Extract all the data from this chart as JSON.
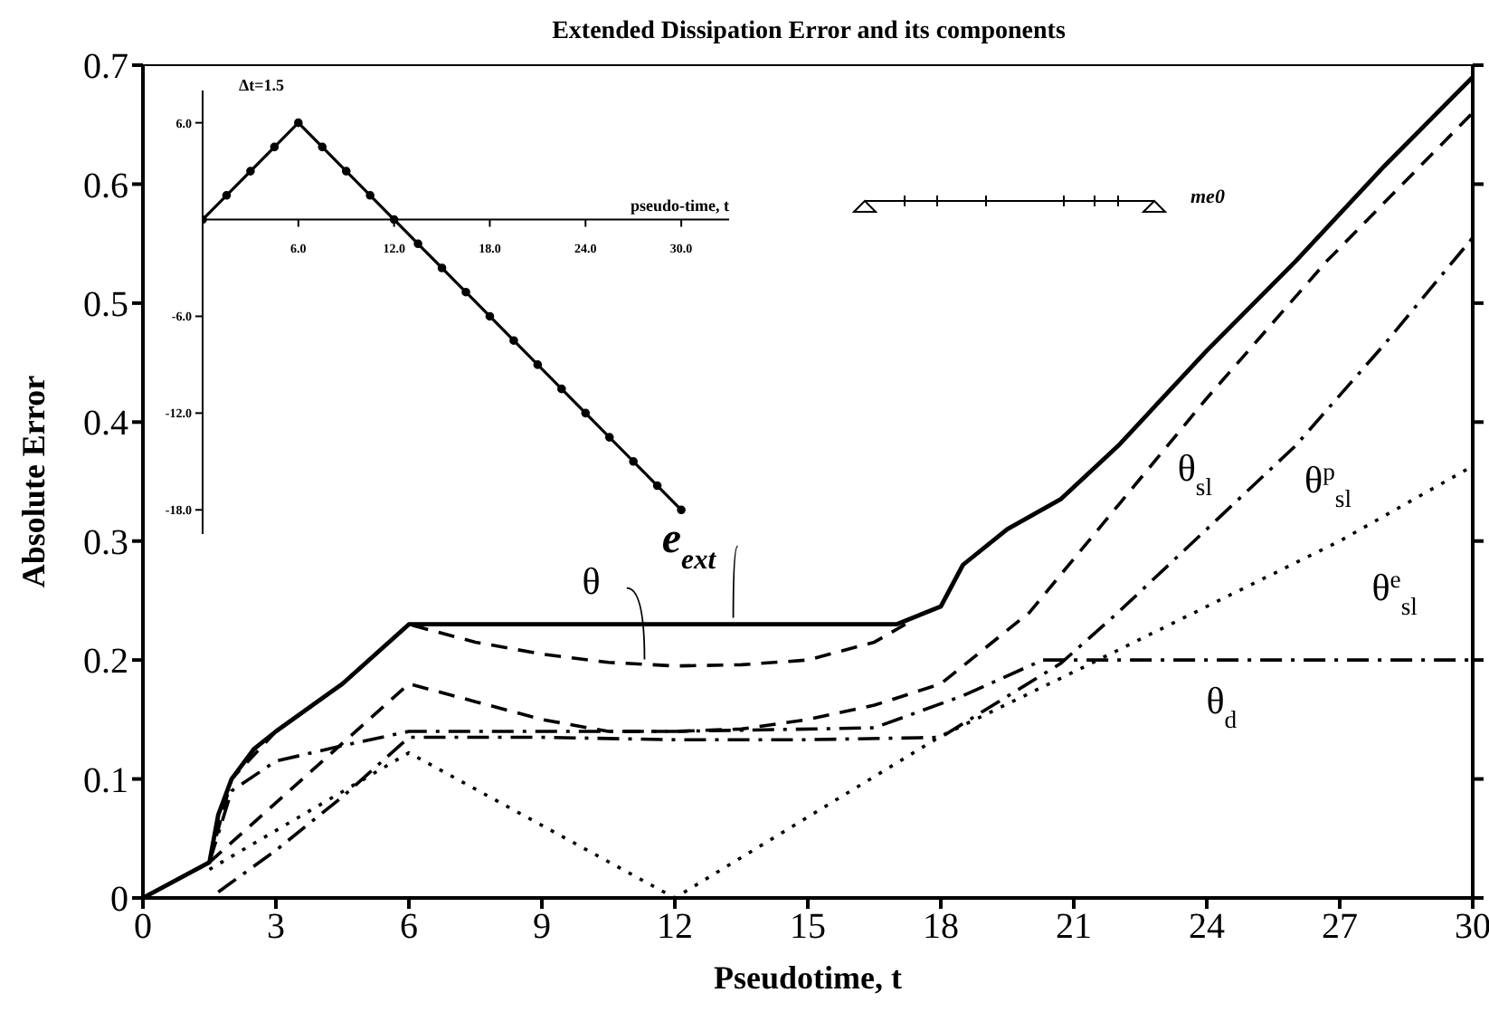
{
  "chart_data": [
    {
      "type": "line",
      "title": "Extended Dissipation Error and its components",
      "xlabel": "Pseudotime, t",
      "ylabel": "Absolute Error",
      "xlim": [
        0,
        30
      ],
      "xticks": [
        0,
        3,
        6,
        9,
        12,
        15,
        18,
        21,
        24,
        27,
        30
      ],
      "ylim": [
        0,
        0.7
      ],
      "yticks": [
        0,
        0.1,
        0.2,
        0.3,
        0.4,
        0.5,
        0.6,
        0.7
      ],
      "grid": false,
      "legend": false,
      "marker": "none",
      "series": [
        {
          "name": "e$_{ext}$",
          "color": "#000000",
          "line_style": "solid",
          "x": [
            0,
            1.5,
            1.7,
            2,
            2.5,
            3,
            4.5,
            6,
            17,
            18,
            18.5,
            19.5,
            20.7,
            22,
            24,
            26,
            28,
            30
          ],
          "values": [
            0,
            0.03,
            0.07,
            0.1,
            0.125,
            0.14,
            0.18,
            0.23,
            0.23,
            0.245,
            0.28,
            0.31,
            0.335,
            0.38,
            0.46,
            0.535,
            0.615,
            0.69
          ]
        },
        {
          "name": "θ",
          "color": "#000000",
          "line_style": "dashed",
          "x": [
            1.5,
            2,
            3,
            4.5,
            6,
            7.5,
            9,
            10.5,
            12,
            13.5,
            15,
            16.5,
            17.2
          ],
          "values": [
            0.03,
            0.1,
            0.14,
            0.18,
            0.23,
            0.215,
            0.205,
            0.198,
            0.195,
            0.196,
            0.2,
            0.215,
            0.23
          ]
        },
        {
          "name": "θ$_{sl}$",
          "color": "#000000",
          "line_style": "dashed",
          "x": [
            1.5,
            3,
            4.5,
            6,
            7.5,
            9,
            10.5,
            12,
            13.5,
            15,
            16.5,
            18,
            20,
            22,
            24,
            26.7,
            30
          ],
          "values": [
            0.03,
            0.08,
            0.13,
            0.18,
            0.165,
            0.15,
            0.14,
            0.14,
            0.142,
            0.15,
            0.162,
            0.18,
            0.24,
            0.33,
            0.42,
            0.535,
            0.66
          ]
        },
        {
          "name": "θ$^{p}$$_{sl}$",
          "color": "#000000",
          "line_style": "dashdot",
          "x": [
            1.7,
            3,
            4.5,
            6,
            9,
            12,
            15,
            18,
            20.7,
            22,
            24,
            26,
            28,
            30
          ],
          "values": [
            0.005,
            0.04,
            0.085,
            0.135,
            0.135,
            0.133,
            0.133,
            0.135,
            0.197,
            0.24,
            0.31,
            0.38,
            0.465,
            0.555
          ]
        },
        {
          "name": "θ$^{e}$$_{sl}$",
          "color": "#000000",
          "line_style": "dotted",
          "x": [
            1.5,
            6,
            12,
            18,
            21,
            24,
            27,
            30
          ],
          "values": [
            0.024,
            0.122,
            0,
            0.136,
            0.19,
            0.245,
            0.3,
            0.363
          ]
        },
        {
          "name": "θ$_{d}$",
          "color": "#000000",
          "line_style": "dashdot",
          "x": [
            1.5,
            2,
            3,
            4.5,
            6,
            12,
            16.5,
            18.5,
            20.3,
            30
          ],
          "values": [
            0.03,
            0.09,
            0.115,
            0.128,
            0.14,
            0.14,
            0.143,
            0.17,
            0.2,
            0.2
          ]
        }
      ]
    },
    {
      "type": "line",
      "title": "Δt=1.5",
      "xlabel": "pseudo-time, t",
      "annotations": [
        "me0"
      ],
      "xlim": [
        0,
        33
      ],
      "xticks": [
        {
          "value": 6,
          "label": "6.0"
        },
        {
          "value": 12,
          "label": "12.0"
        },
        {
          "value": 18,
          "label": "18.0"
        },
        {
          "value": 24,
          "label": "24.0"
        },
        {
          "value": 30,
          "label": "30.0"
        }
      ],
      "ylim": [
        -19.5,
        8
      ],
      "yticks": [
        {
          "value": 6,
          "label": "6.0"
        },
        {
          "value": -6,
          "label": "-6.0"
        },
        {
          "value": -12,
          "label": "-12.0"
        },
        {
          "value": -18,
          "label": "-18.0"
        }
      ],
      "legend": false,
      "marker": "circle",
      "series": [
        {
          "color": "#000000",
          "line_style": "solid",
          "x": [
            0,
            1.5,
            3,
            4.5,
            6,
            7.5,
            9,
            10.5,
            12,
            13.5,
            15,
            16.5,
            18,
            19.5,
            21,
            22.5,
            24,
            25.5,
            27,
            28.5,
            30
          ],
          "values": [
            0,
            1.5,
            3,
            4.5,
            6,
            4.5,
            3,
            1.5,
            0,
            -1.5,
            -3,
            -4.5,
            -6,
            -7.5,
            -9,
            -10.5,
            -12,
            -13.5,
            -15,
            -16.5,
            -18
          ]
        }
      ]
    }
  ]
}
